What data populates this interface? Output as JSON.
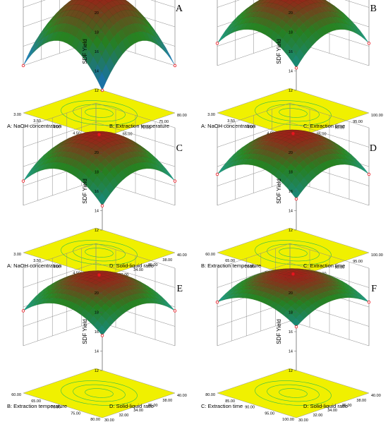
{
  "panels": [
    {
      "letter": "A",
      "a_label": "A: NaOH concentration",
      "b_label": "B: Extraction temperature",
      "a_ticks": [
        "3.00",
        "3.50",
        "4.00",
        "4.50",
        "5.00"
      ],
      "b_ticks": [
        "60.00",
        "65.00",
        "70.00",
        "75.00",
        "80.00"
      ],
      "z_label": "SDF Yield",
      "z_ticks": [
        "12",
        "14",
        "16",
        "18",
        "20"
      ],
      "colors": {
        "surface_high": "#b5241c",
        "surface_mid": "#2e9d28",
        "surface_low": "#1e90ff"
      }
    },
    {
      "letter": "B",
      "a_label": "A: NaOH concentration",
      "b_label": "C: Extraction time",
      "a_ticks": [
        "3.00",
        "3.50",
        "4.00",
        "4.50",
        "5.00"
      ],
      "b_ticks": [
        "80.00",
        "85.00",
        "90.00",
        "95.00",
        "100.00"
      ],
      "z_label": "SDF Yield",
      "z_ticks": [
        "12",
        "14",
        "16",
        "18",
        "20"
      ],
      "colors": {
        "surface_high": "#b5241c",
        "surface_mid": "#2e9d28",
        "surface_low": "#20b2aa"
      }
    },
    {
      "letter": "C",
      "a_label": "A: NaOH concentration",
      "b_label": "D: Solid-liquid ratio",
      "a_ticks": [
        "3.00",
        "3.50",
        "4.00",
        "4.50",
        "5.00"
      ],
      "b_ticks": [
        "30.00",
        "32.00",
        "34.00",
        "36.00",
        "38.00",
        "40.00"
      ],
      "z_label": "SDF Yield",
      "z_ticks": [
        "12",
        "14",
        "16",
        "18",
        "20"
      ],
      "colors": {
        "surface_high": "#b5241c",
        "surface_mid": "#2e9d28",
        "surface_low": "#20b2aa"
      }
    },
    {
      "letter": "D",
      "a_label": "B: Extraction temperature",
      "b_label": "C: Extraction time",
      "a_ticks": [
        "60.00",
        "65.00",
        "70.00",
        "75.00",
        "80.00"
      ],
      "b_ticks": [
        "80.00",
        "85.00",
        "90.00",
        "95.00",
        "100.00"
      ],
      "z_label": "SDF Yield",
      "z_ticks": [
        "12",
        "14",
        "16",
        "18",
        "20"
      ],
      "colors": {
        "surface_high": "#b5241c",
        "surface_mid": "#2e9d28",
        "surface_low": "#20b2aa"
      }
    },
    {
      "letter": "E",
      "a_label": "B: Extraction temperature",
      "b_label": "D: Solid-liquid ratio",
      "a_ticks": [
        "60.00",
        "65.00",
        "70.00",
        "75.00",
        "80.00"
      ],
      "b_ticks": [
        "30.00",
        "32.00",
        "34.00",
        "36.00",
        "38.00",
        "40.00"
      ],
      "z_label": "SDF Yield",
      "z_ticks": [
        "12",
        "14",
        "16",
        "18",
        "20"
      ],
      "colors": {
        "surface_high": "#b5241c",
        "surface_mid": "#2e9d28",
        "surface_low": "#20b2aa"
      }
    },
    {
      "letter": "F",
      "a_label": "C: Extraction time",
      "b_label": "D: Solid-liquid ratio",
      "a_ticks": [
        "80.00",
        "85.00",
        "90.00",
        "95.00",
        "100.00"
      ],
      "b_ticks": [
        "30.00",
        "32.00",
        "34.00",
        "36.00",
        "38.00",
        "40.00"
      ],
      "z_label": "SDF Yield",
      "z_ticks": [
        "12",
        "14",
        "16",
        "18",
        "20"
      ],
      "colors": {
        "surface_high": "#b5241c",
        "surface_mid": "#2e9d28",
        "surface_low": "#20b2aa"
      }
    }
  ],
  "colors": {
    "floor": "#f0f000",
    "contour": "#2fbf4a",
    "design_point": "#e8141e",
    "grid": "#8a8a8a"
  },
  "chart_data": [
    {
      "type": "surface",
      "factor_a": "A: NaOH concentration",
      "factor_b": "B: Extraction temperature",
      "a_range": [
        3,
        5
      ],
      "b_range": [
        60,
        80
      ],
      "zlim": [
        12,
        20
      ],
      "peak_yield": 19.5,
      "corner_min": 12.0,
      "grid": true
    },
    {
      "type": "surface",
      "factor_a": "A: NaOH concentration",
      "factor_b": "C: Extraction time",
      "a_range": [
        3,
        5
      ],
      "b_range": [
        80,
        100
      ],
      "zlim": [
        12,
        20
      ],
      "peak_yield": 19.4,
      "corner_min": 14.3,
      "grid": true
    },
    {
      "type": "surface",
      "factor_a": "A: NaOH concentration",
      "factor_b": "D: Solid-liquid ratio",
      "a_range": [
        3,
        5
      ],
      "b_range": [
        30,
        40
      ],
      "zlim": [
        12,
        20
      ],
      "peak_yield": 19.3,
      "corner_min": 14.5,
      "grid": true
    },
    {
      "type": "surface",
      "factor_a": "B: Extraction temperature",
      "factor_b": "C: Extraction time",
      "a_range": [
        60,
        80
      ],
      "b_range": [
        80,
        100
      ],
      "zlim": [
        12,
        20
      ],
      "peak_yield": 19.4,
      "corner_min": 15.2,
      "grid": true
    },
    {
      "type": "surface",
      "factor_a": "B: Extraction temperature",
      "factor_b": "D: Solid-liquid ratio",
      "a_range": [
        60,
        80
      ],
      "b_range": [
        30,
        40
      ],
      "zlim": [
        12,
        20
      ],
      "peak_yield": 19.3,
      "corner_min": 15.6,
      "grid": true
    },
    {
      "type": "surface",
      "factor_a": "C: Extraction time",
      "factor_b": "D: Solid-liquid ratio",
      "a_range": [
        80,
        100
      ],
      "b_range": [
        30,
        40
      ],
      "zlim": [
        12,
        20
      ],
      "peak_yield": 19.4,
      "corner_min": 16.5,
      "grid": true
    }
  ]
}
